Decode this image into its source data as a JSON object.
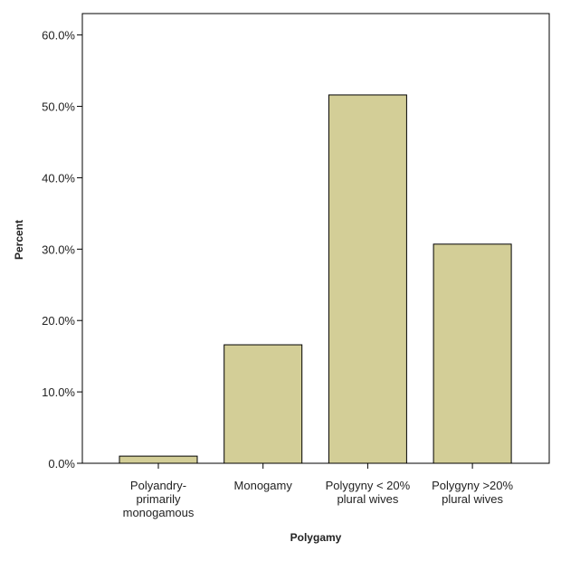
{
  "chart_data": {
    "type": "bar",
    "x_label": "Polygamy",
    "y_label": "Percent",
    "categories": [
      "Polyandry-\nprimarily\nmonogamous",
      "Monogamy",
      "Polygyny < 20%\nplural wives",
      "Polygyny >20%\nplural wives"
    ],
    "values": [
      1.0,
      16.6,
      51.6,
      30.7
    ],
    "color": "#d3ce97",
    "ylim": [
      0,
      63
    ],
    "yticks": [
      {
        "value": 0,
        "label": "0.0%"
      },
      {
        "value": 10,
        "label": "10.0%"
      },
      {
        "value": 20,
        "label": "20.0%"
      },
      {
        "value": 30,
        "label": "30.0%"
      },
      {
        "value": 40,
        "label": "40.0%"
      },
      {
        "value": 50,
        "label": "50.0%"
      },
      {
        "value": 60,
        "label": "60.0%"
      }
    ]
  }
}
